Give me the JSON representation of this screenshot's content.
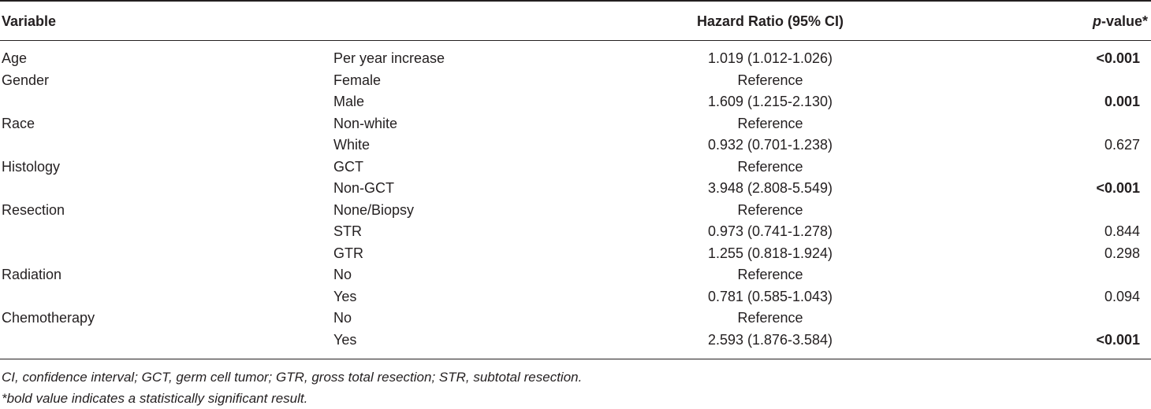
{
  "header": {
    "variable": "Variable",
    "hazard_ratio": "Hazard Ratio (95% CI)",
    "p_value_italic": "p",
    "p_value_rest": "-value*"
  },
  "rows": [
    {
      "variable": "Age",
      "category": "Per year increase",
      "hr": "1.019 (1.012-1.026)",
      "p": "<0.001",
      "bold": true
    },
    {
      "variable": "Gender",
      "category": "Female",
      "hr": "Reference",
      "p": "",
      "bold": false
    },
    {
      "variable": "",
      "category": "Male",
      "hr": "1.609 (1.215-2.130)",
      "p": "0.001",
      "bold": true
    },
    {
      "variable": "Race",
      "category": "Non-white",
      "hr": "Reference",
      "p": "",
      "bold": false
    },
    {
      "variable": "",
      "category": "White",
      "hr": "0.932 (0.701-1.238)",
      "p": "0.627",
      "bold": false
    },
    {
      "variable": "Histology",
      "category": "GCT",
      "hr": "Reference",
      "p": "",
      "bold": false
    },
    {
      "variable": "",
      "category": "Non-GCT",
      "hr": "3.948 (2.808-5.549)",
      "p": "<0.001",
      "bold": true
    },
    {
      "variable": "Resection",
      "category": "None/Biopsy",
      "hr": "Reference",
      "p": "",
      "bold": false
    },
    {
      "variable": "",
      "category": "STR",
      "hr": "0.973 (0.741-1.278)",
      "p": "0.844",
      "bold": false
    },
    {
      "variable": "",
      "category": "GTR",
      "hr": "1.255 (0.818-1.924)",
      "p": "0.298",
      "bold": false
    },
    {
      "variable": "Radiation",
      "category": "No",
      "hr": "Reference",
      "p": "",
      "bold": false
    },
    {
      "variable": "",
      "category": "Yes",
      "hr": "0.781 (0.585-1.043)",
      "p": "0.094",
      "bold": false
    },
    {
      "variable": "Chemotherapy",
      "category": "No",
      "hr": "Reference",
      "p": "",
      "bold": false
    },
    {
      "variable": "",
      "category": "Yes",
      "hr": "2.593 (1.876-3.584)",
      "p": "<0.001",
      "bold": true
    }
  ],
  "footnotes": [
    "CI, confidence interval; GCT, germ cell tumor; GTR, gross total resection; STR, subtotal resection.",
    "*bold value indicates a statistically significant result."
  ]
}
